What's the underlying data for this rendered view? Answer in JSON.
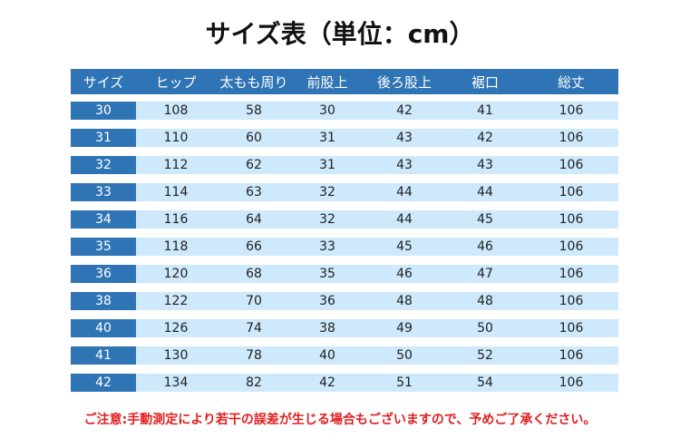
{
  "title": "サイズ表（単位：cm）",
  "table": {
    "header": [
      "サイズ",
      "ヒップ",
      "太もも周り",
      "前股上",
      "後ろ股上",
      "裾口",
      "総丈"
    ],
    "rows": [
      [
        30,
        108,
        58,
        30,
        42,
        41,
        106
      ],
      [
        31,
        110,
        60,
        31,
        43,
        42,
        106
      ],
      [
        32,
        112,
        62,
        31,
        43,
        43,
        106
      ],
      [
        33,
        114,
        63,
        32,
        44,
        44,
        106
      ],
      [
        34,
        116,
        64,
        32,
        44,
        45,
        106
      ],
      [
        35,
        118,
        66,
        33,
        45,
        46,
        106
      ],
      [
        36,
        120,
        68,
        35,
        46,
        47,
        106
      ],
      [
        38,
        122,
        70,
        36,
        48,
        48,
        106
      ],
      [
        40,
        126,
        74,
        38,
        49,
        50,
        106
      ],
      [
        41,
        130,
        78,
        40,
        50,
        52,
        106
      ],
      [
        42,
        134,
        82,
        42,
        51,
        54,
        106
      ]
    ]
  },
  "note": "ご注意:手動測定により若干の誤差が生じる場合もございますので、予めご了承ください。"
}
